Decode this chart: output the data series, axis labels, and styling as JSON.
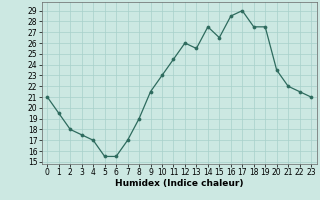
{
  "x": [
    0,
    1,
    2,
    3,
    4,
    5,
    6,
    7,
    8,
    9,
    10,
    11,
    12,
    13,
    14,
    15,
    16,
    17,
    18,
    19,
    20,
    21,
    22,
    23
  ],
  "y": [
    21,
    19.5,
    18,
    17.5,
    17,
    15.5,
    15.5,
    17,
    19,
    21.5,
    23,
    24.5,
    26,
    25.5,
    27.5,
    26.5,
    28.5,
    29,
    27.5,
    27.5,
    23.5,
    22,
    21.5,
    21
  ],
  "xlabel": "Humidex (Indice chaleur)",
  "xlim": [
    -0.5,
    23.5
  ],
  "ylim": [
    14.8,
    29.8
  ],
  "yticks": [
    15,
    16,
    17,
    18,
    19,
    20,
    21,
    22,
    23,
    24,
    25,
    26,
    27,
    28,
    29
  ],
  "xticks": [
    0,
    1,
    2,
    3,
    4,
    5,
    6,
    7,
    8,
    9,
    10,
    11,
    12,
    13,
    14,
    15,
    16,
    17,
    18,
    19,
    20,
    21,
    22,
    23
  ],
  "line_color": "#2e6b5e",
  "marker_color": "#2e6b5e",
  "bg_color": "#cce8e2",
  "grid_color": "#a8d0ca",
  "tick_fontsize": 5.5,
  "xlabel_fontsize": 6.5
}
